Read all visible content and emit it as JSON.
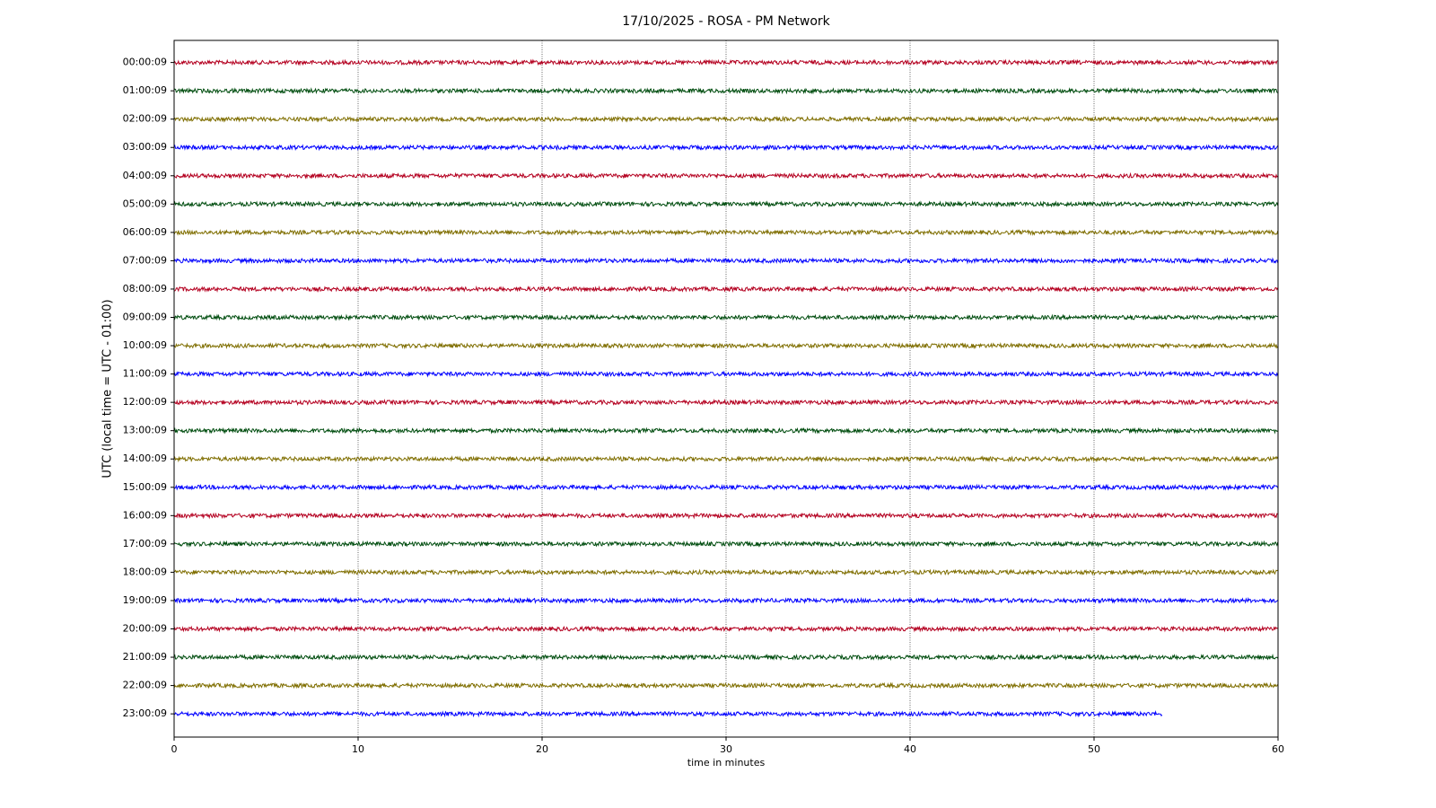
{
  "chart_data": {
    "type": "helicorder",
    "title": "17/10/2025 - ROSA - PM Network",
    "x_label": "time in minutes",
    "y_label": "UTC (local time = UTC - 01:00)",
    "xlim": [
      0,
      60
    ],
    "xticks": [
      0,
      10,
      20,
      30,
      40,
      50,
      60
    ],
    "grid": true,
    "rows": [
      {
        "label": "00:00:09",
        "color": "#b40020",
        "end": 60
      },
      {
        "label": "01:00:09",
        "color": "#004d0f",
        "end": 60
      },
      {
        "label": "02:00:09",
        "color": "#7f6e00",
        "end": 60
      },
      {
        "label": "03:00:09",
        "color": "#0000ff",
        "end": 60
      },
      {
        "label": "04:00:09",
        "color": "#b40020",
        "end": 60
      },
      {
        "label": "05:00:09",
        "color": "#004d0f",
        "end": 60
      },
      {
        "label": "06:00:09",
        "color": "#7f6e00",
        "end": 60
      },
      {
        "label": "07:00:09",
        "color": "#0000ff",
        "end": 60
      },
      {
        "label": "08:00:09",
        "color": "#b40020",
        "end": 60
      },
      {
        "label": "09:00:09",
        "color": "#004d0f",
        "end": 60
      },
      {
        "label": "10:00:09",
        "color": "#7f6e00",
        "end": 60
      },
      {
        "label": "11:00:09",
        "color": "#0000ff",
        "end": 60
      },
      {
        "label": "12:00:09",
        "color": "#b40020",
        "end": 60
      },
      {
        "label": "13:00:09",
        "color": "#004d0f",
        "end": 60
      },
      {
        "label": "14:00:09",
        "color": "#7f6e00",
        "end": 60
      },
      {
        "label": "15:00:09",
        "color": "#0000ff",
        "end": 60
      },
      {
        "label": "16:00:09",
        "color": "#b40020",
        "end": 60
      },
      {
        "label": "17:00:09",
        "color": "#004d0f",
        "end": 60
      },
      {
        "label": "18:00:09",
        "color": "#7f6e00",
        "end": 60
      },
      {
        "label": "19:00:09",
        "color": "#0000ff",
        "end": 60
      },
      {
        "label": "20:00:09",
        "color": "#b40020",
        "end": 60
      },
      {
        "label": "21:00:09",
        "color": "#004d0f",
        "end": 60
      },
      {
        "label": "22:00:09",
        "color": "#7f6e00",
        "end": 60
      },
      {
        "label": "23:00:09",
        "color": "#0000ff",
        "end": 53.7
      }
    ]
  }
}
